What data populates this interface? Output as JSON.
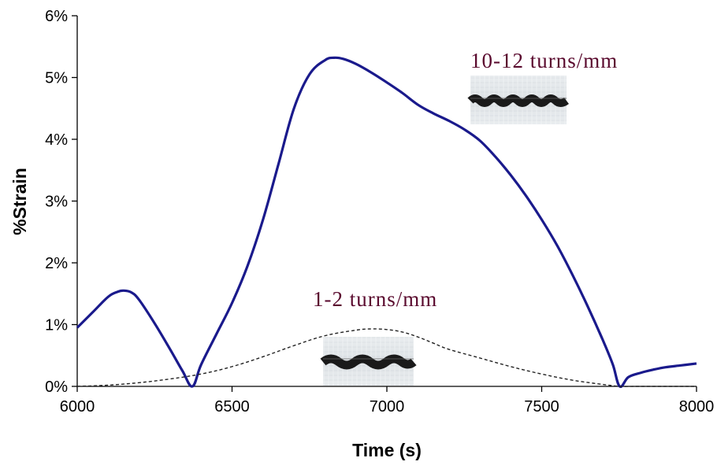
{
  "chart_data": {
    "type": "line",
    "title": "",
    "xlabel": "Time (s)",
    "ylabel": "%Strain",
    "xlim": [
      6000,
      8000
    ],
    "ylim": [
      0,
      6
    ],
    "x_ticks": [
      "6000",
      "6500",
      "7000",
      "7500",
      "8000"
    ],
    "y_ticks": [
      "0%",
      "1%",
      "2%",
      "3%",
      "4%",
      "5%",
      "6%"
    ],
    "grid": false,
    "legend": "none",
    "annotations": [
      {
        "text": "10-12 turns/mm",
        "color": "#5a0a2e"
      },
      {
        "text": "1-2 turns/mm",
        "color": "#5a0a2e"
      }
    ],
    "series": [
      {
        "color": "#1a1a8c",
        "style": "solid",
        "x": [
          6000,
          6050,
          6100,
          6130,
          6150,
          6175,
          6200,
          6250,
          6300,
          6340,
          6372,
          6400,
          6450,
          6500,
          6550,
          6600,
          6650,
          6700,
          6750,
          6800,
          6830,
          6860,
          6900,
          6950,
          7000,
          7050,
          7100,
          7150,
          7200,
          7250,
          7300,
          7350,
          7400,
          7450,
          7500,
          7550,
          7600,
          7650,
          7700,
          7730,
          7752,
          7780,
          7820,
          7860,
          7900,
          7950,
          8000
        ],
        "y": [
          0.95,
          1.2,
          1.45,
          1.53,
          1.55,
          1.52,
          1.4,
          1.02,
          0.6,
          0.25,
          0.0,
          0.35,
          0.85,
          1.35,
          1.95,
          2.7,
          3.6,
          4.5,
          5.05,
          5.28,
          5.32,
          5.3,
          5.22,
          5.08,
          4.92,
          4.75,
          4.56,
          4.42,
          4.3,
          4.16,
          3.98,
          3.72,
          3.42,
          3.08,
          2.7,
          2.28,
          1.8,
          1.28,
          0.72,
          0.35,
          0.0,
          0.15,
          0.22,
          0.27,
          0.31,
          0.34,
          0.37
        ]
      },
      {
        "color": "#222222",
        "style": "dashed",
        "x": [
          6000,
          6100,
          6200,
          6300,
          6400,
          6500,
          6600,
          6700,
          6800,
          6900,
          6950,
          7000,
          7050,
          7100,
          7150,
          7200,
          7300,
          7400,
          7500,
          7600,
          7700,
          7752,
          7800,
          8000
        ],
        "y": [
          0.0,
          0.02,
          0.06,
          0.12,
          0.2,
          0.32,
          0.48,
          0.66,
          0.82,
          0.91,
          0.93,
          0.92,
          0.88,
          0.8,
          0.7,
          0.6,
          0.46,
          0.32,
          0.2,
          0.1,
          0.03,
          0.0,
          0.0,
          0.0
        ]
      }
    ]
  },
  "colors": {
    "solid_series": "#1a1a8c",
    "dashed_series": "#222222",
    "annotation_text": "#5a0a2e"
  }
}
